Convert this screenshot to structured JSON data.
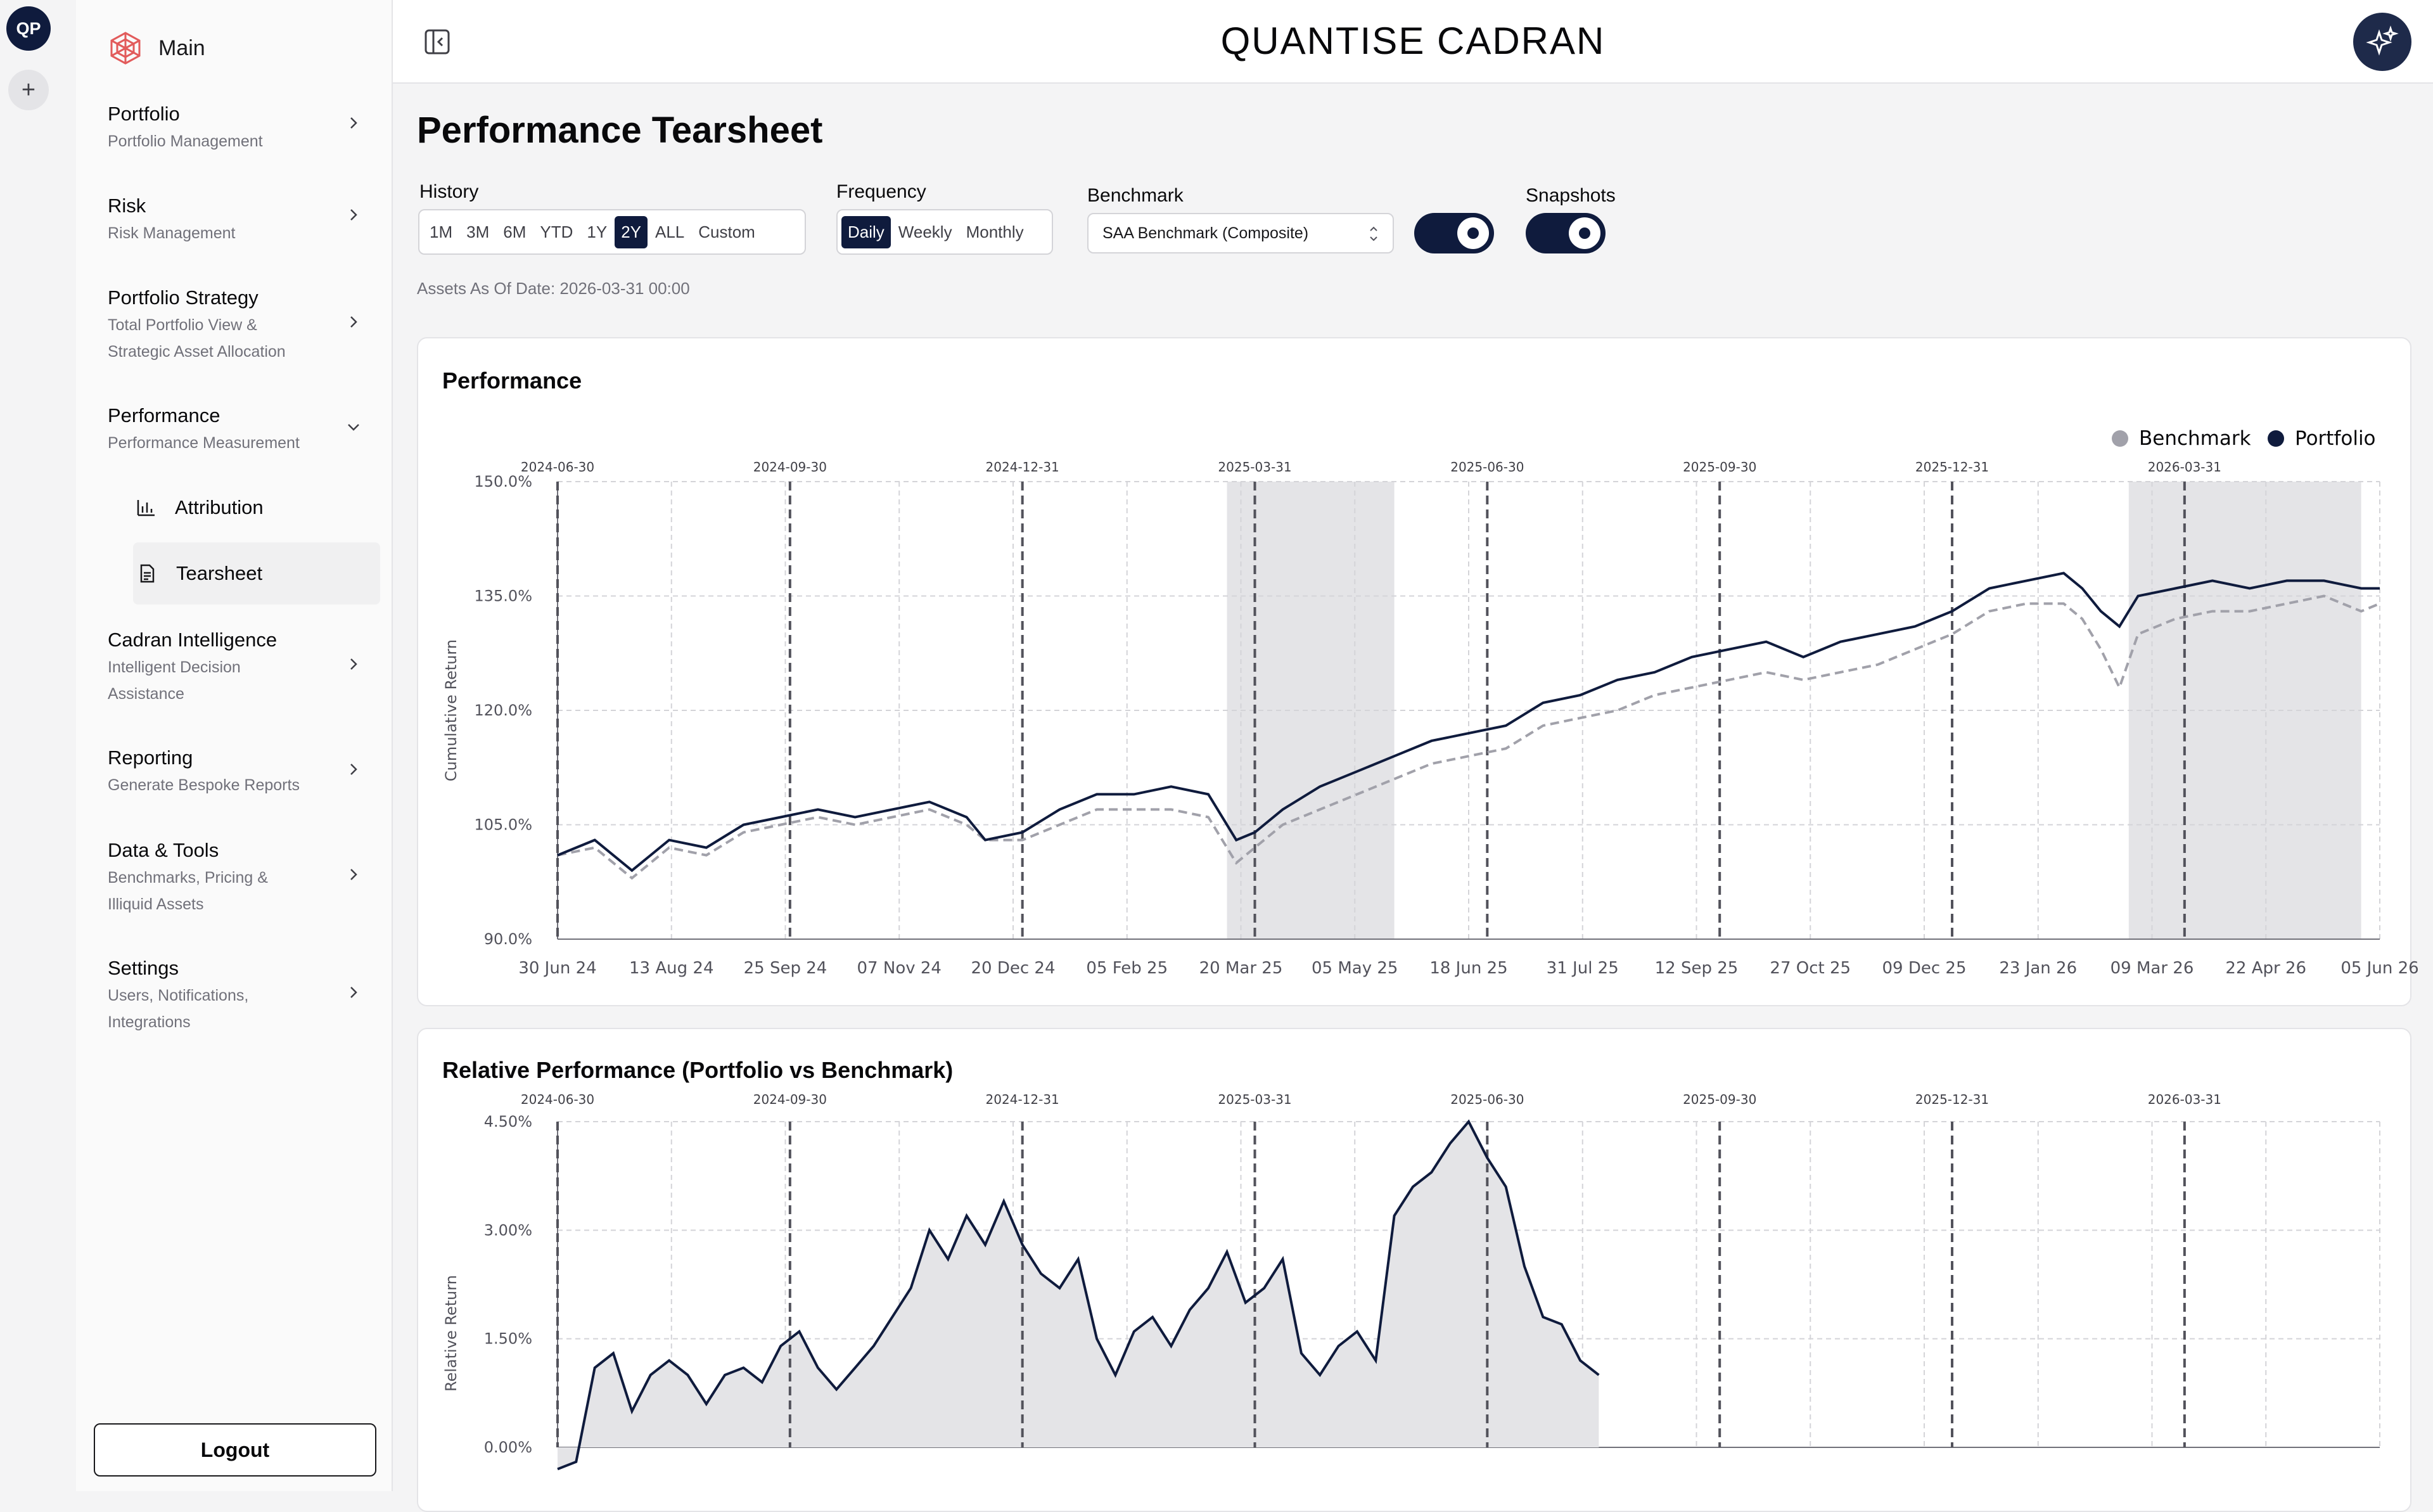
{
  "rail": {
    "workspace_initials": "QP",
    "add_label": "+"
  },
  "sidebar": {
    "brand_label": "Main",
    "items": [
      {
        "title": "Portfolio",
        "subtitle": "Portfolio Management"
      },
      {
        "title": "Risk",
        "subtitle": "Risk Management"
      },
      {
        "title": "Portfolio Strategy",
        "subtitle_lines": [
          "Total Portfolio View &",
          "Strategic Asset Allocation"
        ]
      },
      {
        "title": "Performance",
        "subtitle": "Performance Measurement",
        "expanded": true
      },
      {
        "title": "Cadran Intelligence",
        "subtitle_lines": [
          "Intelligent Decision",
          "Assistance"
        ]
      },
      {
        "title": "Reporting",
        "subtitle": "Generate Bespoke Reports"
      },
      {
        "title": "Data & Tools",
        "subtitle_lines": [
          "Benchmarks, Pricing &",
          "Illiquid Assets"
        ]
      },
      {
        "title": "Settings",
        "subtitle_lines": [
          "Users, Notifications,",
          "Integrations"
        ]
      }
    ],
    "performance_children": [
      {
        "label": "Attribution",
        "icon": "bar-chart-icon"
      },
      {
        "label": "Tearsheet",
        "icon": "document-icon",
        "active": true
      }
    ],
    "logout_label": "Logout"
  },
  "header": {
    "app_title": "QUANTISE CADRAN"
  },
  "page": {
    "title": "Performance Tearsheet",
    "history": {
      "label": "History",
      "options": [
        "1M",
        "3M",
        "6M",
        "YTD",
        "1Y",
        "2Y",
        "ALL",
        "Custom"
      ],
      "selected": "2Y"
    },
    "frequency": {
      "label": "Frequency",
      "options": [
        "Daily",
        "Weekly",
        "Monthly"
      ],
      "selected": "Daily"
    },
    "benchmark": {
      "label": "Benchmark",
      "value": "SAA Benchmark (Composite)",
      "toggle_on": true
    },
    "snapshots": {
      "label": "Snapshots",
      "toggle_on": true
    },
    "as_of": "Assets As Of Date: 2026-03-31 00:00"
  },
  "colors": {
    "primary": "#0f1b3d",
    "benchmark": "#a1a1aa",
    "shade": "#e4e4e7"
  },
  "chart_data": [
    {
      "type": "line",
      "title": "Performance",
      "ylabel": "Cumulative Return",
      "yticks": [
        "150.0%",
        "135.0%",
        "120.0%",
        "105.0%",
        "90.0%"
      ],
      "ylim": [
        90,
        150
      ],
      "xticks": [
        "30 Jun 24",
        "13 Aug 24",
        "25 Sep 24",
        "07 Nov 24",
        "20 Dec 24",
        "05 Feb 25",
        "20 Mar 25",
        "05 May 25",
        "18 Jun 25",
        "31 Jul 25",
        "12 Sep 25",
        "27 Oct 25",
        "09 Dec 25",
        "23 Jan 26",
        "09 Mar 26",
        "22 Apr 26",
        "05 Jun 26"
      ],
      "snapshot_markers": [
        "2024-06-30",
        "2024-09-30",
        "2024-12-31",
        "2025-03-31",
        "2025-06-30",
        "2025-09-30",
        "2025-12-31",
        "2026-03-31"
      ],
      "legend": [
        "Benchmark",
        "Portfolio"
      ],
      "legend_position": "top-right",
      "drawdown_shading": [
        [
          "2025-03-20",
          "2025-05-05"
        ],
        [
          "2026-03-09",
          "2026-04-22"
        ]
      ],
      "series": [
        {
          "name": "Portfolio",
          "style": "solid",
          "points": [
            [
              0,
              101
            ],
            [
              0.04,
              103
            ],
            [
              0.08,
              99
            ],
            [
              0.12,
              103
            ],
            [
              0.16,
              102
            ],
            [
              0.2,
              105
            ],
            [
              0.24,
              106
            ],
            [
              0.28,
              107
            ],
            [
              0.32,
              106
            ],
            [
              0.36,
              107
            ],
            [
              0.4,
              108
            ],
            [
              0.44,
              106
            ],
            [
              0.46,
              103
            ],
            [
              0.5,
              104
            ],
            [
              0.54,
              107
            ],
            [
              0.58,
              109
            ],
            [
              0.62,
              109
            ],
            [
              0.66,
              110
            ],
            [
              0.7,
              109
            ],
            [
              0.73,
              103
            ],
            [
              0.75,
              104
            ],
            [
              0.78,
              107
            ],
            [
              0.82,
              110
            ],
            [
              0.86,
              112
            ],
            [
              0.9,
              114
            ],
            [
              0.94,
              116
            ],
            [
              0.98,
              117
            ],
            [
              1.02,
              118
            ],
            [
              1.06,
              121
            ],
            [
              1.1,
              122
            ],
            [
              1.14,
              124
            ],
            [
              1.18,
              125
            ],
            [
              1.22,
              127
            ],
            [
              1.26,
              128
            ],
            [
              1.3,
              129
            ],
            [
              1.34,
              127
            ],
            [
              1.38,
              129
            ],
            [
              1.42,
              130
            ],
            [
              1.46,
              131
            ],
            [
              1.5,
              133
            ],
            [
              1.54,
              136
            ],
            [
              1.58,
              137
            ],
            [
              1.62,
              138
            ],
            [
              1.64,
              136
            ],
            [
              1.66,
              133
            ],
            [
              1.68,
              131
            ],
            [
              1.7,
              135
            ],
            [
              1.74,
              136
            ],
            [
              1.78,
              137
            ],
            [
              1.82,
              136
            ],
            [
              1.86,
              137
            ],
            [
              1.9,
              137
            ],
            [
              1.94,
              136
            ],
            [
              1.96,
              136
            ]
          ]
        },
        {
          "name": "Benchmark",
          "style": "dashed",
          "points": [
            [
              0,
              101
            ],
            [
              0.04,
              102
            ],
            [
              0.08,
              98
            ],
            [
              0.12,
              102
            ],
            [
              0.16,
              101
            ],
            [
              0.2,
              104
            ],
            [
              0.24,
              105
            ],
            [
              0.28,
              106
            ],
            [
              0.32,
              105
            ],
            [
              0.36,
              106
            ],
            [
              0.4,
              107
            ],
            [
              0.44,
              105
            ],
            [
              0.46,
              103
            ],
            [
              0.5,
              103
            ],
            [
              0.54,
              105
            ],
            [
              0.58,
              107
            ],
            [
              0.62,
              107
            ],
            [
              0.66,
              107
            ],
            [
              0.7,
              106
            ],
            [
              0.73,
              100
            ],
            [
              0.75,
              102
            ],
            [
              0.78,
              105
            ],
            [
              0.82,
              107
            ],
            [
              0.86,
              109
            ],
            [
              0.9,
              111
            ],
            [
              0.94,
              113
            ],
            [
              0.98,
              114
            ],
            [
              1.02,
              115
            ],
            [
              1.06,
              118
            ],
            [
              1.1,
              119
            ],
            [
              1.14,
              120
            ],
            [
              1.18,
              122
            ],
            [
              1.22,
              123
            ],
            [
              1.26,
              124
            ],
            [
              1.3,
              125
            ],
            [
              1.34,
              124
            ],
            [
              1.38,
              125
            ],
            [
              1.42,
              126
            ],
            [
              1.46,
              128
            ],
            [
              1.5,
              130
            ],
            [
              1.54,
              133
            ],
            [
              1.58,
              134
            ],
            [
              1.62,
              134
            ],
            [
              1.64,
              132
            ],
            [
              1.66,
              128
            ],
            [
              1.68,
              123
            ],
            [
              1.7,
              130
            ],
            [
              1.74,
              132
            ],
            [
              1.78,
              133
            ],
            [
              1.82,
              133
            ],
            [
              1.86,
              134
            ],
            [
              1.9,
              135
            ],
            [
              1.94,
              133
            ],
            [
              1.96,
              134
            ]
          ]
        }
      ]
    },
    {
      "type": "area",
      "title": "Relative Performance (Portfolio vs Benchmark)",
      "ylabel": "Relative Return",
      "yticks": [
        "4.50%",
        "3.00%",
        "1.50%",
        "0.00%"
      ],
      "ylim": [
        0,
        4.5
      ],
      "snapshot_markers": [
        "2024-06-30",
        "2024-09-30",
        "2024-12-31",
        "2025-03-31",
        "2025-06-30",
        "2025-09-30",
        "2025-12-31",
        "2026-03-31"
      ],
      "series": [
        {
          "name": "Relative",
          "points": [
            [
              0,
              -0.3
            ],
            [
              0.02,
              -0.2
            ],
            [
              0.04,
              1.1
            ],
            [
              0.06,
              1.3
            ],
            [
              0.08,
              0.5
            ],
            [
              0.1,
              1.0
            ],
            [
              0.12,
              1.2
            ],
            [
              0.14,
              1.0
            ],
            [
              0.16,
              0.6
            ],
            [
              0.18,
              1.0
            ],
            [
              0.2,
              1.1
            ],
            [
              0.22,
              0.9
            ],
            [
              0.24,
              1.4
            ],
            [
              0.26,
              1.6
            ],
            [
              0.28,
              1.1
            ],
            [
              0.3,
              0.8
            ],
            [
              0.32,
              1.1
            ],
            [
              0.34,
              1.4
            ],
            [
              0.36,
              1.8
            ],
            [
              0.38,
              2.2
            ],
            [
              0.4,
              3.0
            ],
            [
              0.42,
              2.6
            ],
            [
              0.44,
              3.2
            ],
            [
              0.46,
              2.8
            ],
            [
              0.48,
              3.4
            ],
            [
              0.5,
              2.8
            ],
            [
              0.52,
              2.4
            ],
            [
              0.54,
              2.2
            ],
            [
              0.56,
              2.6
            ],
            [
              0.58,
              1.5
            ],
            [
              0.6,
              1.0
            ],
            [
              0.62,
              1.6
            ],
            [
              0.64,
              1.8
            ],
            [
              0.66,
              1.4
            ],
            [
              0.68,
              1.9
            ],
            [
              0.7,
              2.2
            ],
            [
              0.72,
              2.7
            ],
            [
              0.74,
              2.0
            ],
            [
              0.76,
              2.2
            ],
            [
              0.78,
              2.6
            ],
            [
              0.8,
              1.3
            ],
            [
              0.82,
              1.0
            ],
            [
              0.84,
              1.4
            ],
            [
              0.86,
              1.6
            ],
            [
              0.88,
              1.2
            ],
            [
              0.9,
              3.2
            ],
            [
              0.92,
              3.6
            ],
            [
              0.94,
              3.8
            ],
            [
              0.96,
              4.2
            ],
            [
              0.98,
              4.5
            ],
            [
              1.0,
              4.0
            ],
            [
              1.02,
              3.6
            ],
            [
              1.04,
              2.5
            ],
            [
              1.06,
              1.8
            ],
            [
              1.08,
              1.7
            ],
            [
              1.1,
              1.2
            ],
            [
              1.12,
              1.0
            ]
          ]
        }
      ]
    }
  ]
}
